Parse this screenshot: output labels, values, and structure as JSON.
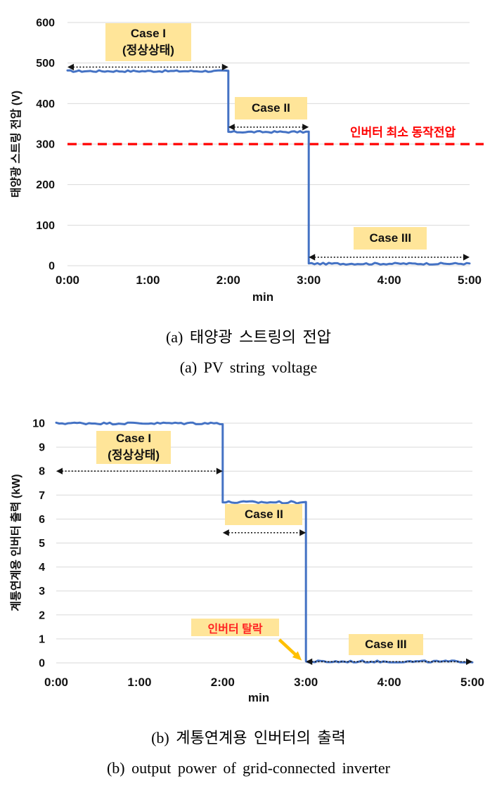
{
  "colors": {
    "line": "#4472C4",
    "grid": "#D9D9D9",
    "case_box_bg": "#FFE599",
    "threshold_red": "#FF0000",
    "event_text_red": "#FF2222",
    "dropout_arrow_orange": "#FFC000",
    "span_arrow_black": "#141414",
    "axis_text": "#111111"
  },
  "chart_data": [
    {
      "id": "pv-string-voltage",
      "type": "line",
      "ylabel": "태양광 스트링 전압 (V)",
      "xlabel": "min",
      "x_ticks": [
        {
          "label": "0:00",
          "value": 0
        },
        {
          "label": "1:00",
          "value": 1
        },
        {
          "label": "2:00",
          "value": 2
        },
        {
          "label": "3:00",
          "value": 3
        },
        {
          "label": "4:00",
          "value": 4
        },
        {
          "label": "5:00",
          "value": 5
        }
      ],
      "xlim": [
        0,
        5
      ],
      "ylim": [
        0,
        600
      ],
      "y_ticks": [
        0,
        100,
        200,
        300,
        400,
        500,
        600
      ],
      "grid": true,
      "series": [
        {
          "name": "PV string voltage",
          "segments": [
            {
              "from_min": 0,
              "to_min": 2,
              "value": 480
            },
            {
              "from_min": 2,
              "to_min": 3,
              "value": 330
            },
            {
              "from_min": 3,
              "to_min": 5,
              "value": 5
            }
          ]
        }
      ],
      "noise_amp": 2.2,
      "threshold_line": {
        "value": 300,
        "label": "인버터 최소 동작전압",
        "label_x": 4.17,
        "label_y": 320
      },
      "cases": [
        {
          "lines": "Case I\n(정상상태)",
          "span": [
            0,
            2
          ],
          "arrow_y": 490,
          "box_x": [
            0.47,
            1.54
          ],
          "box_y": [
            598,
            504
          ]
        },
        {
          "lines": "Case II",
          "span": [
            2,
            3
          ],
          "arrow_y": 342,
          "box_x": [
            2.08,
            2.98
          ],
          "box_y": [
            416,
            361
          ]
        },
        {
          "lines": "Case III",
          "span": [
            3,
            5
          ],
          "arrow_y": 21,
          "box_x": [
            3.56,
            4.47
          ],
          "box_y": [
            95,
            40
          ]
        }
      ],
      "caption_korean": "(a) 태양광 스트링의 전압",
      "caption_english": "(a) PV string voltage"
    },
    {
      "id": "grid-inverter-output",
      "type": "line",
      "ylabel": "계통연계용 인버터 출력 (kW)",
      "xlabel": "min",
      "x_ticks": [
        {
          "label": "0:00",
          "value": 0
        },
        {
          "label": "1:00",
          "value": 1
        },
        {
          "label": "2:00",
          "value": 2
        },
        {
          "label": "3:00",
          "value": 3
        },
        {
          "label": "4:00",
          "value": 4
        },
        {
          "label": "5:00",
          "value": 5
        }
      ],
      "xlim": [
        0,
        5
      ],
      "ylim": [
        0,
        10
      ],
      "y_ticks": [
        0,
        1,
        2,
        3,
        4,
        5,
        6,
        7,
        8,
        9,
        10
      ],
      "grid": true,
      "series": [
        {
          "name": "grid-connected inverter output power",
          "segments": [
            {
              "from_min": 0,
              "to_min": 2,
              "value": 10
            },
            {
              "from_min": 2,
              "to_min": 3,
              "value": 6.7
            },
            {
              "from_min": 3,
              "to_min": 5,
              "value": 0.05
            }
          ]
        }
      ],
      "noise_amp": 0.05,
      "cases": [
        {
          "lines": "Case I\n(정상상태)",
          "span": [
            0,
            2
          ],
          "arrow_y": 8,
          "box_x": [
            0.48,
            1.38
          ],
          "box_y": [
            9.68,
            8.3
          ]
        },
        {
          "lines": "Case II",
          "span": [
            2,
            3
          ],
          "arrow_y": 5.43,
          "box_x": [
            2.03,
            2.96
          ],
          "box_y": [
            6.63,
            5.75
          ]
        },
        {
          "lines": "Case III",
          "span": [
            3,
            5
          ],
          "arrow_y": 0.05,
          "box_x": [
            3.51,
            4.41
          ],
          "box_y": [
            1.2,
            0.32
          ]
        }
      ],
      "event": {
        "label": "인버터 탈락",
        "box_x": [
          1.62,
          2.68
        ],
        "box_y": [
          1.85,
          1.11
        ],
        "arrow_from": [
          2.68,
          0.97
        ],
        "arrow_to": [
          2.95,
          0.1
        ]
      },
      "caption_korean": "(b) 계통연계용 인버터의 출력",
      "caption_english": "(b) output power of grid-connected inverter"
    }
  ]
}
